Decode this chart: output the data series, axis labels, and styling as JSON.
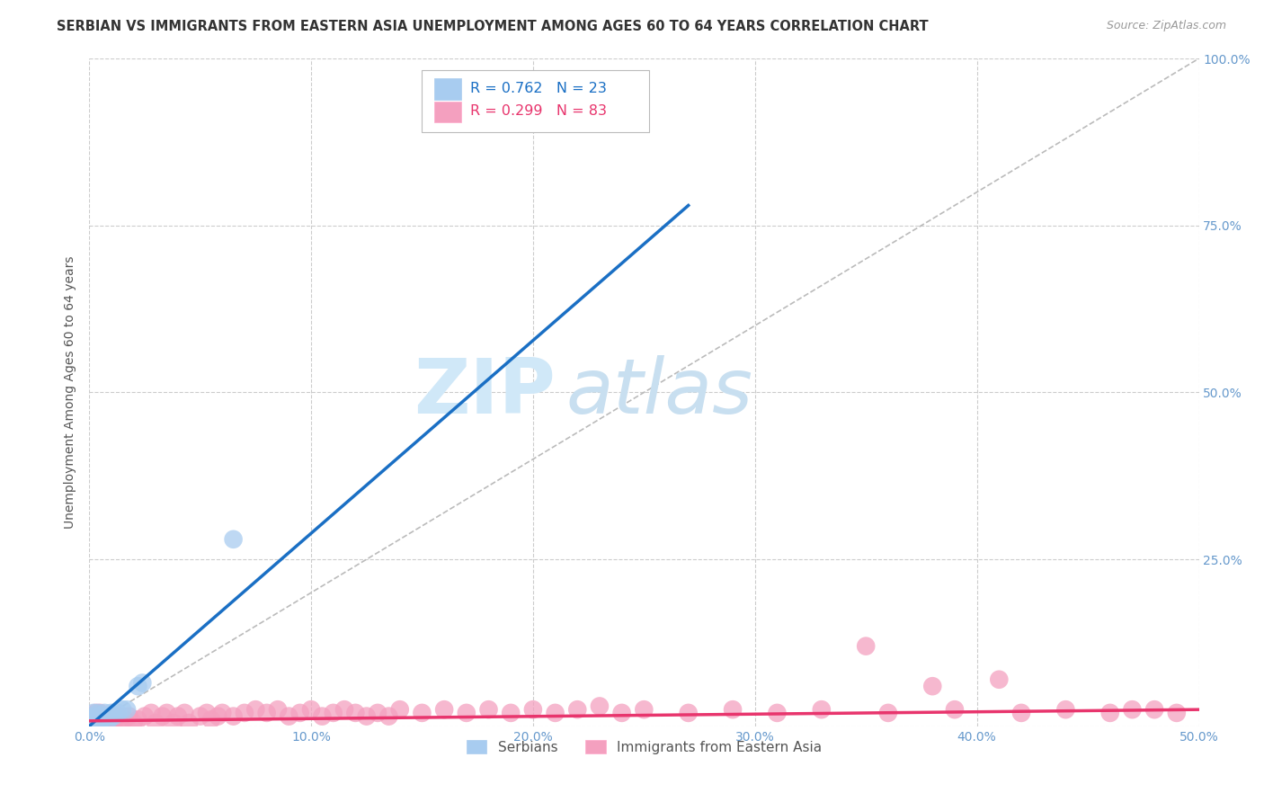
{
  "title": "SERBIAN VS IMMIGRANTS FROM EASTERN ASIA UNEMPLOYMENT AMONG AGES 60 TO 64 YEARS CORRELATION CHART",
  "source": "Source: ZipAtlas.com",
  "ylabel": "Unemployment Among Ages 60 to 64 years",
  "xlim": [
    0.0,
    0.5
  ],
  "ylim": [
    0.0,
    1.0
  ],
  "xticks": [
    0.0,
    0.1,
    0.2,
    0.3,
    0.4,
    0.5
  ],
  "xticklabels": [
    "0.0%",
    "10.0%",
    "20.0%",
    "30.0%",
    "40.0%",
    "50.0%"
  ],
  "yticks": [
    0.0,
    0.25,
    0.5,
    0.75,
    1.0
  ],
  "yticklabels": [
    "",
    "25.0%",
    "50.0%",
    "75.0%",
    "100.0%"
  ],
  "background_color": "#ffffff",
  "grid_color": "#cccccc",
  "watermark_zip": "ZIP",
  "watermark_atlas": "atlas",
  "serbian_color": "#a8ccf0",
  "eastern_asia_color": "#f4a0bf",
  "trend_blue_color": "#1a6fc4",
  "trend_pink_color": "#e8356d",
  "legend_r_blue": "R = 0.762",
  "legend_n_blue": "N = 23",
  "legend_r_pink": "R = 0.299",
  "legend_n_pink": "N = 83",
  "legend_label_blue": "Serbians",
  "legend_label_pink": "Immigrants from Eastern Asia",
  "serbian_x": [
    0.001,
    0.001,
    0.002,
    0.002,
    0.002,
    0.003,
    0.003,
    0.004,
    0.004,
    0.005,
    0.005,
    0.006,
    0.007,
    0.008,
    0.009,
    0.01,
    0.011,
    0.013,
    0.015,
    0.017,
    0.022,
    0.024,
    0.065
  ],
  "serbian_y": [
    0.005,
    0.01,
    0.005,
    0.015,
    0.02,
    0.005,
    0.01,
    0.005,
    0.02,
    0.005,
    0.015,
    0.01,
    0.02,
    0.015,
    0.01,
    0.02,
    0.015,
    0.02,
    0.025,
    0.025,
    0.06,
    0.065,
    0.28
  ],
  "eastern_asia_x": [
    0.001,
    0.001,
    0.002,
    0.002,
    0.003,
    0.003,
    0.004,
    0.004,
    0.005,
    0.005,
    0.006,
    0.006,
    0.007,
    0.007,
    0.008,
    0.008,
    0.009,
    0.009,
    0.01,
    0.01,
    0.012,
    0.013,
    0.015,
    0.016,
    0.018,
    0.02,
    0.022,
    0.025,
    0.028,
    0.03,
    0.033,
    0.035,
    0.038,
    0.04,
    0.043,
    0.045,
    0.05,
    0.053,
    0.055,
    0.058,
    0.06,
    0.065,
    0.07,
    0.075,
    0.08,
    0.085,
    0.09,
    0.095,
    0.1,
    0.105,
    0.11,
    0.115,
    0.12,
    0.125,
    0.13,
    0.135,
    0.14,
    0.15,
    0.16,
    0.17,
    0.18,
    0.19,
    0.2,
    0.21,
    0.22,
    0.23,
    0.24,
    0.25,
    0.27,
    0.29,
    0.31,
    0.33,
    0.36,
    0.39,
    0.42,
    0.44,
    0.46,
    0.47,
    0.48,
    0.49,
    0.35,
    0.38,
    0.41
  ],
  "eastern_asia_y": [
    0.005,
    0.015,
    0.005,
    0.01,
    0.005,
    0.02,
    0.01,
    0.015,
    0.005,
    0.02,
    0.005,
    0.015,
    0.005,
    0.01,
    0.005,
    0.015,
    0.005,
    0.01,
    0.005,
    0.015,
    0.01,
    0.015,
    0.005,
    0.01,
    0.015,
    0.005,
    0.01,
    0.015,
    0.02,
    0.005,
    0.015,
    0.02,
    0.005,
    0.015,
    0.02,
    0.005,
    0.015,
    0.02,
    0.01,
    0.015,
    0.02,
    0.015,
    0.02,
    0.025,
    0.02,
    0.025,
    0.015,
    0.02,
    0.025,
    0.015,
    0.02,
    0.025,
    0.02,
    0.015,
    0.02,
    0.015,
    0.025,
    0.02,
    0.025,
    0.02,
    0.025,
    0.02,
    0.025,
    0.02,
    0.025,
    0.03,
    0.02,
    0.025,
    0.02,
    0.025,
    0.02,
    0.025,
    0.02,
    0.025,
    0.02,
    0.025,
    0.02,
    0.025,
    0.025,
    0.02,
    0.12,
    0.06,
    0.07
  ],
  "blue_trend_x0": 0.0,
  "blue_trend_y0": 0.0,
  "blue_trend_x1": 0.27,
  "blue_trend_y1": 0.78,
  "pink_trend_x0": 0.0,
  "pink_trend_y0": 0.008,
  "pink_trend_x1": 0.5,
  "pink_trend_y1": 0.025,
  "title_fontsize": 10.5,
  "source_fontsize": 9,
  "axis_label_fontsize": 10,
  "tick_fontsize": 10,
  "tick_color": "#6699cc",
  "ylabel_color": "#555555"
}
